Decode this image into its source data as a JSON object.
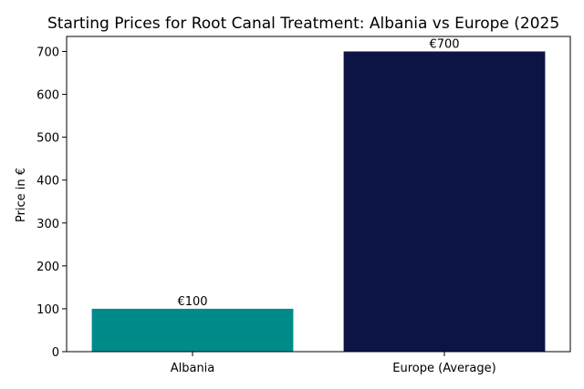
{
  "chart_data": {
    "type": "bar",
    "title": "Starting Prices for Root Canal Treatment: Albania vs Europe (2025",
    "xlabel": "",
    "ylabel": "Price in €",
    "categories": [
      "Albania",
      "Europe (Average)"
    ],
    "values": [
      100,
      700
    ],
    "data_labels": [
      "€100",
      "€700"
    ],
    "colors": [
      "#008b8b",
      "#0b1445"
    ],
    "ylim": [
      0,
      735
    ],
    "yticks": [
      0,
      100,
      200,
      300,
      400,
      500,
      600,
      700
    ],
    "grid": false,
    "legend": "none"
  }
}
